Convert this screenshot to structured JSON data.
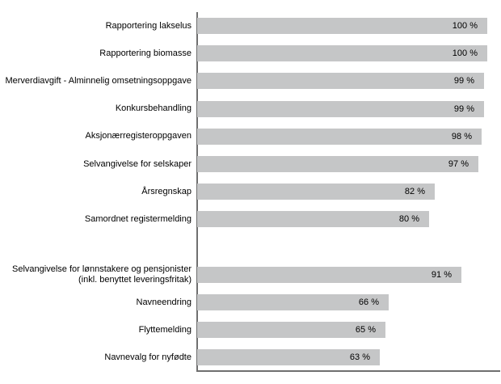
{
  "chart_data": {
    "type": "bar",
    "orientation": "horizontal",
    "title": "",
    "xlabel": "",
    "ylabel": "",
    "xlim": [
      0,
      100
    ],
    "unit": "%",
    "grid": false,
    "legend": false,
    "categories": [
      "Rapportering lakselus",
      "Rapportering biomasse",
      "Merverdiavgift - Alminnelig omsetningsoppgave",
      "Konkursbehandling",
      "Aksjonærregisteroppgaven",
      "Selvangivelse for selskaper",
      "Årsregnskap",
      "Samordnet registermelding",
      "Selvangivelse for lønnstakere og pensjonister\n(inkl. benyttet leveringsfritak)",
      "Navneendring",
      "Flyttemelding",
      "Navnevalg for nyfødte"
    ],
    "values": [
      100,
      100,
      99,
      99,
      98,
      97,
      82,
      80,
      91,
      66,
      65,
      63
    ],
    "value_labels": [
      "100 %",
      "100 %",
      "99 %",
      "99 %",
      "98 %",
      "97 %",
      "82 %",
      "80 %",
      "91 %",
      "66 %",
      "65 %",
      "63 %"
    ],
    "gap_after_index": 7,
    "colors": {
      "bar": "#c5c6c7",
      "axis": "#6f6f6f",
      "value_text": "#000000",
      "label_text": "#000000",
      "background": "#ffffff"
    }
  }
}
